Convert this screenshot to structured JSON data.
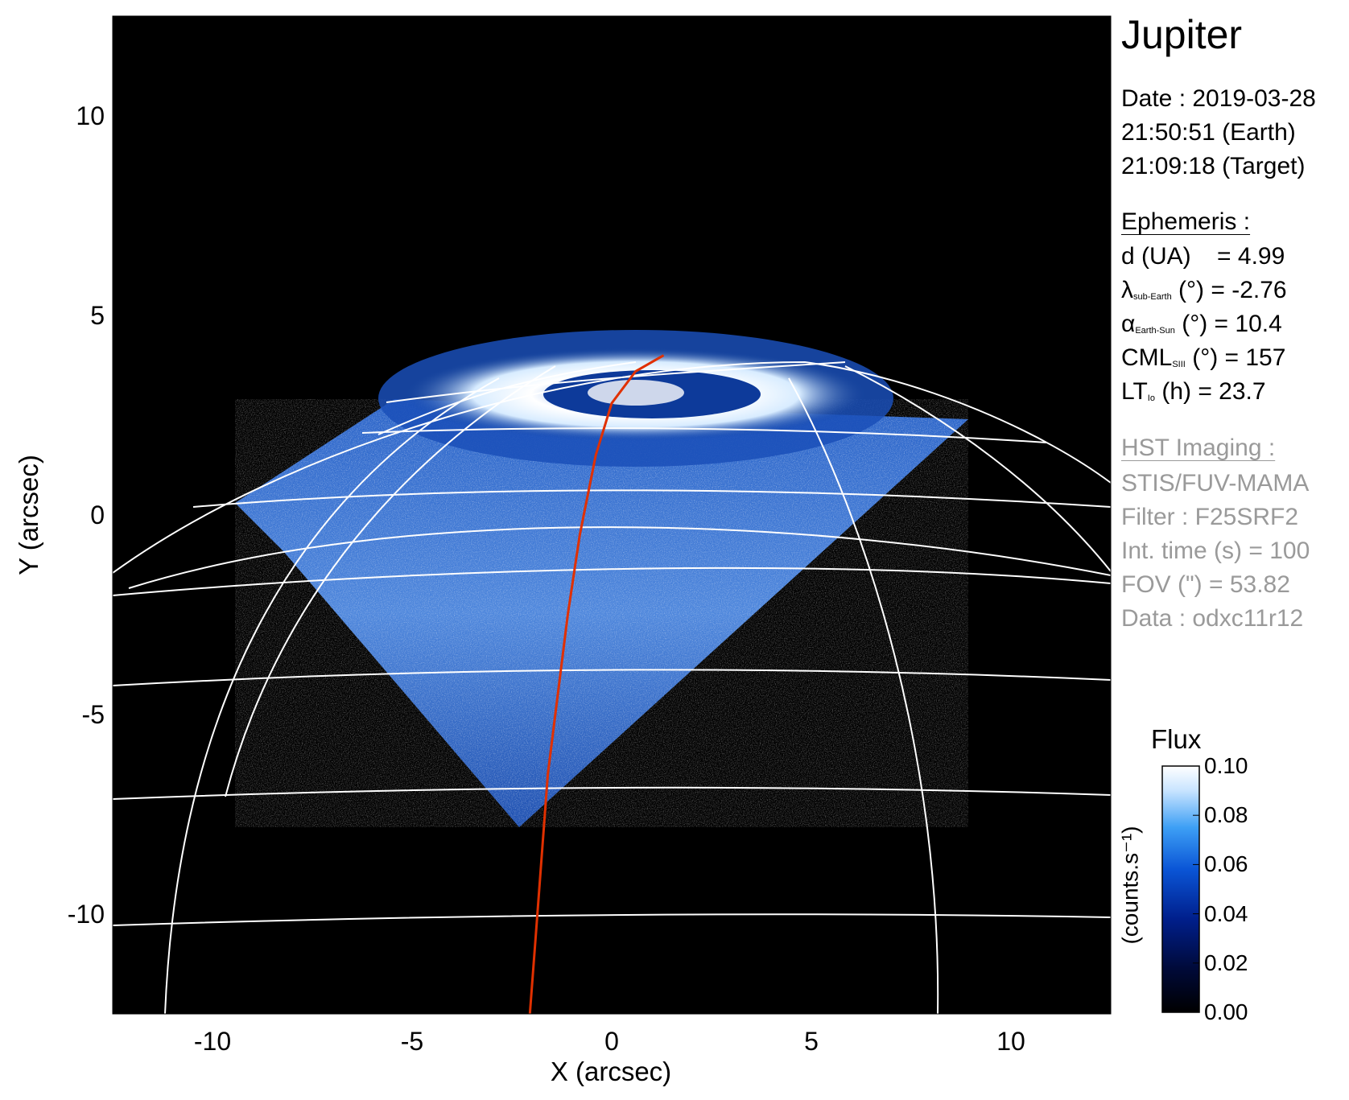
{
  "chart_data": {
    "type": "heatmap",
    "title": "Jupiter",
    "xlabel": "X (arcsec)",
    "ylabel": "Y (arcsec)",
    "xlim": [
      -12.5,
      12.5
    ],
    "ylim": [
      -12.5,
      12.5
    ],
    "x_ticks": [
      -10,
      -5,
      0,
      5,
      10
    ],
    "y_ticks": [
      10,
      5,
      0,
      -5,
      -10
    ],
    "colorbar": {
      "label": "Flux",
      "unit": "(counts.s⁻¹)",
      "range": [
        0.0,
        0.1
      ],
      "ticks": [
        "0.00",
        "0.02",
        "0.04",
        "0.06",
        "0.08",
        "0.10"
      ],
      "colors": [
        "#000000",
        "#000a3a",
        "#001f8c",
        "#0a55d6",
        "#3d9ff5",
        "#c8e4ff",
        "#ffffff"
      ]
    },
    "footprint_x": [
      1.3,
      0.6,
      0.0,
      -0.4,
      -0.8,
      -1.1,
      -1.35,
      -1.6,
      -1.75,
      -1.9,
      -2.05
    ],
    "footprint_y": [
      4.0,
      3.6,
      2.8,
      1.5,
      -0.5,
      -2.5,
      -4.5,
      -6.5,
      -8.5,
      -10.5,
      -12.5
    ],
    "footprint_color": "#e03000",
    "colors": {
      "sky": "#000000",
      "grid": "#ffffff"
    }
  },
  "info": {
    "date_line": "Date : 2019-03-28",
    "earth_time": "21:50:51 (Earth)",
    "target_time": "21:09:18 (Target)",
    "ephemeris_header": "Ephemeris :",
    "d_label": "d (UA)",
    "d_value": "= 4.99",
    "lambda_symbol": "λ",
    "lambda_sub": "sub-Earth",
    "lambda_value": "(°) = -2.76",
    "alpha_symbol": "α",
    "alpha_sub": "Earth-Sun",
    "alpha_value": "(°) = 10.4",
    "cml_symbol": "CML",
    "cml_sub": "SIII",
    "cml_value": "(°) = 157",
    "lt_symbol": "LT",
    "lt_sub": "Io",
    "lt_value": "(h) = 23.7",
    "hst_header": "HST Imaging :",
    "instrument": "STIS/FUV-MAMA",
    "filter": "Filter : F25SRF2",
    "int_time": "Int. time (s) = 100",
    "fov": "FOV (\") = 53.82",
    "data_id": "Data : odxc11r12"
  }
}
